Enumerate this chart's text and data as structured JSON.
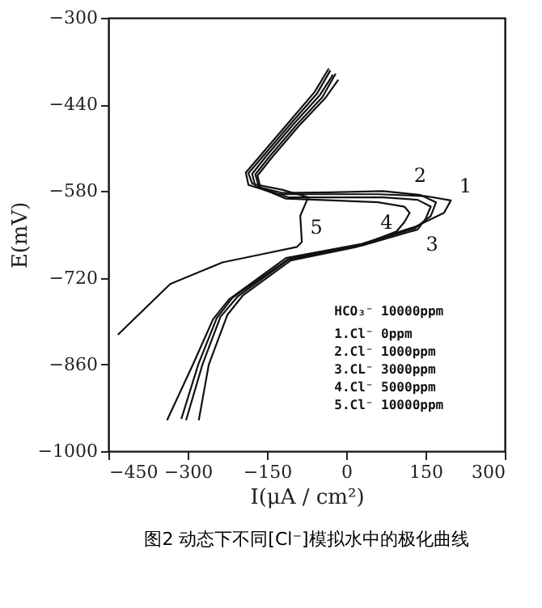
{
  "chart_data": {
    "type": "line",
    "title": "图2 动态下不同[Cl⁻]模拟水中的极化曲线",
    "xlabel": "I(μA / cm²)",
    "ylabel": "E(mV)",
    "xlim": [
      -450,
      300
    ],
    "xticks": [
      -450,
      -300,
      -150,
      0,
      150,
      300
    ],
    "ylim": [
      -1000,
      -300
    ],
    "yticks": [
      -300,
      -440,
      -580,
      -720,
      -860,
      -1000
    ],
    "grid": false,
    "legend": false,
    "marker": "none",
    "line_style": "solid",
    "series": [
      {
        "color": "#111111",
        "x": [
          -33,
          -60,
          -110,
          -160,
          -190,
          -185,
          -130,
          -40,
          60,
          150,
          198,
          185,
          132,
          30,
          -114,
          -222,
          -252,
          -290,
          -339
        ],
        "values": [
          -382,
          -420,
          -470,
          -520,
          -550,
          -570,
          -585,
          -585,
          -585,
          -588,
          -595,
          -615,
          -637,
          -665,
          -688,
          -755,
          -787,
          -860,
          -950
        ]
      },
      {
        "color": "#111111",
        "x": [
          -25,
          -50,
          -100,
          -150,
          -178,
          -172,
          -120,
          -30,
          70,
          140,
          170,
          160,
          130,
          30,
          -110,
          -215,
          -245,
          -280,
          -312
        ],
        "values": [
          -392,
          -425,
          -472,
          -522,
          -552,
          -572,
          -583,
          -582,
          -580,
          -586,
          -598,
          -620,
          -640,
          -666,
          -690,
          -752,
          -785,
          -860,
          -948
        ]
      },
      {
        "color": "#111111",
        "x": [
          -15,
          -40,
          -90,
          -140,
          -168,
          -162,
          -110,
          -20,
          70,
          135,
          160,
          150,
          135,
          30,
          -108,
          -205,
          -238,
          -272,
          -303
        ],
        "values": [
          -400,
          -430,
          -475,
          -525,
          -555,
          -575,
          -590,
          -590,
          -590,
          -594,
          -605,
          -625,
          -642,
          -668,
          -690,
          -750,
          -783,
          -860,
          -950
        ]
      },
      {
        "color": "#111111",
        "x": [
          -20,
          -45,
          -95,
          -145,
          -172,
          -165,
          -115,
          -25,
          60,
          110,
          120,
          110,
          95,
          20,
          -105,
          -195,
          -225,
          -260,
          -279
        ],
        "values": [
          -390,
          -428,
          -474,
          -524,
          -553,
          -574,
          -592,
          -595,
          -598,
          -605,
          -615,
          -630,
          -645,
          -670,
          -692,
          -748,
          -780,
          -860,
          -950
        ]
      },
      {
        "color": "#111111",
        "x": [
          -30,
          -55,
          -105,
          -155,
          -185,
          -178,
          -120,
          -72,
          -87,
          -84,
          -93,
          -160,
          -234,
          -333,
          -432
        ],
        "values": [
          -385,
          -422,
          -471,
          -521,
          -551,
          -568,
          -578,
          -590,
          -620,
          -662,
          -670,
          -682,
          -695,
          -730,
          -812
        ]
      }
    ],
    "annotations": [
      {
        "text": "1",
        "x": 198,
        "y": -595
      },
      {
        "text": "2",
        "x": 140,
        "y": -586
      },
      {
        "text": "3",
        "x": 135,
        "y": -642
      },
      {
        "text": "4",
        "x": 110,
        "y": -630
      },
      {
        "text": "5",
        "x": -84,
        "y": -662
      },
      "HCO₃⁻ 10000ppm",
      "1.Cl⁻     0ppm",
      "2.Cl⁻  1000ppm",
      "3.CL⁻  3000ppm",
      "4.Cl⁻  5000ppm",
      "5.Cl⁻ 10000ppm"
    ]
  }
}
